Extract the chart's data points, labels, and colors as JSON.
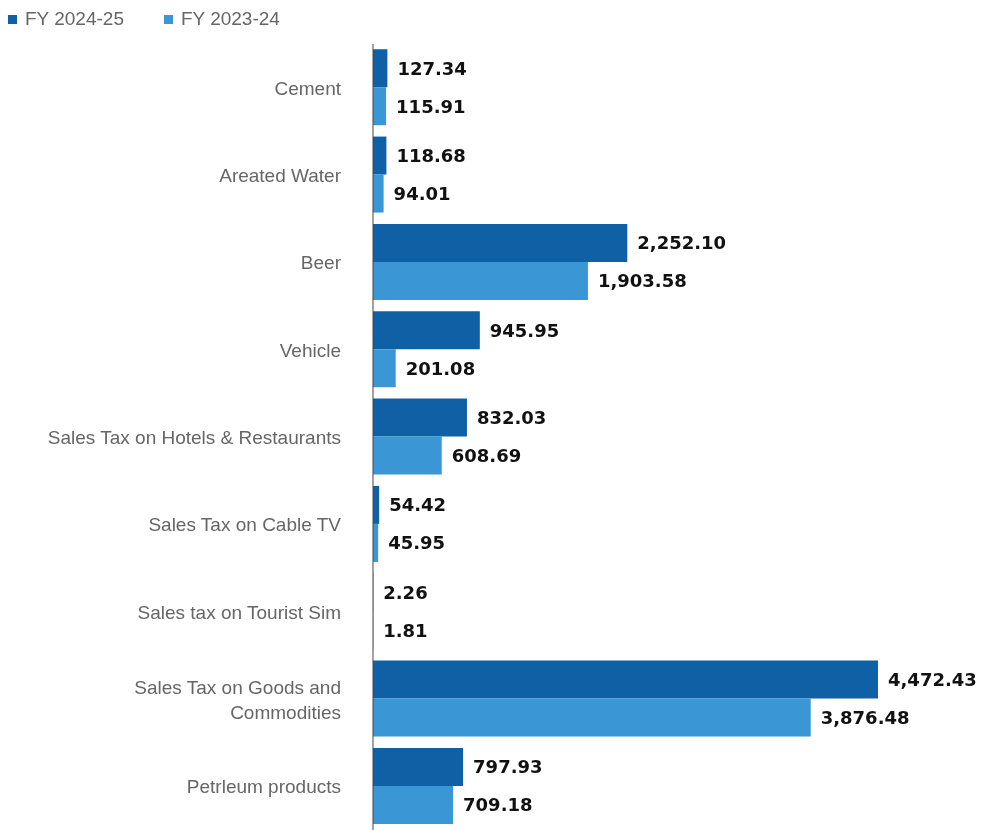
{
  "chart_data": {
    "type": "bar",
    "orientation": "horizontal",
    "legend": "top left",
    "categories": [
      "Cement",
      "Areated Water",
      "Beer",
      "Vehicle",
      "Sales Tax on Hotels & Restaurants",
      "Sales Tax on Cable TV",
      "Sales tax on Tourist Sim",
      "Sales Tax on Goods and Commodities",
      "Petrleum products"
    ],
    "series": [
      {
        "name": "FY 2024-25",
        "color": "#1060a6",
        "values": [
          127.34,
          118.68,
          2252.1,
          945.95,
          832.03,
          54.42,
          2.26,
          4472.43,
          797.93
        ],
        "value_labels": [
          "127.34",
          "118.68",
          "2,252.10",
          "945.95",
          "832.03",
          "54.42",
          "2.26",
          "4,472.43",
          "797.93"
        ]
      },
      {
        "name": "FY 2023-24",
        "color": "#3a96d4",
        "values": [
          115.91,
          94.01,
          1903.58,
          201.08,
          608.69,
          45.95,
          1.81,
          3876.48,
          709.18
        ],
        "value_labels": [
          "115.91",
          "94.01",
          "1,903.58",
          "201.08",
          "608.69",
          "45.95",
          "1.81",
          "3,876.48",
          "709.18"
        ]
      }
    ]
  }
}
